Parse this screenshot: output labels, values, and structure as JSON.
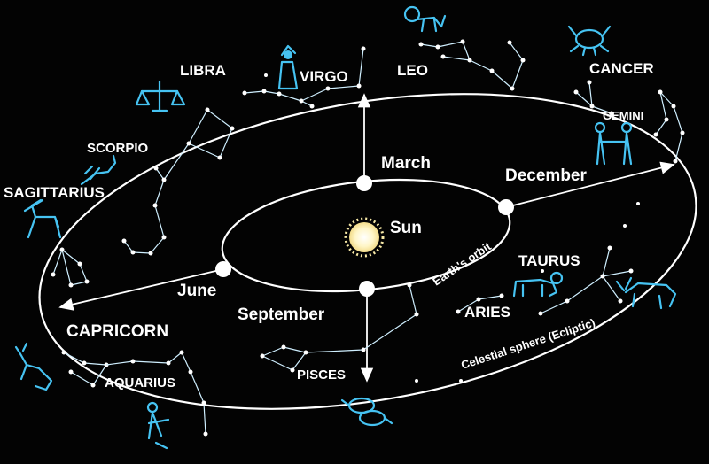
{
  "center": {
    "label": "Sun"
  },
  "months": {
    "march": "March",
    "june": "June",
    "september": "September",
    "december": "December"
  },
  "orbits": {
    "earth": "Earth's orbit",
    "celestial": "Celestial sphere (Ecliptic)"
  },
  "constellations": {
    "libra": "LIBRA",
    "virgo": "VIRGO",
    "leo": "LEO",
    "cancer": "CANCER",
    "gemini": "GEMINI",
    "scorpio": "SCORPIO",
    "sagittarius": "SAGITTARIUS",
    "capricorn": "CAPRICORN",
    "aquarius": "AQUARIUS",
    "pisces": "PISCES",
    "aries": "ARIES",
    "taurus": "TAURUS"
  },
  "colors": {
    "background": "#030303",
    "lines": "#ffffff",
    "symbols": "#46c3f2",
    "sun": "#fff6c8"
  }
}
